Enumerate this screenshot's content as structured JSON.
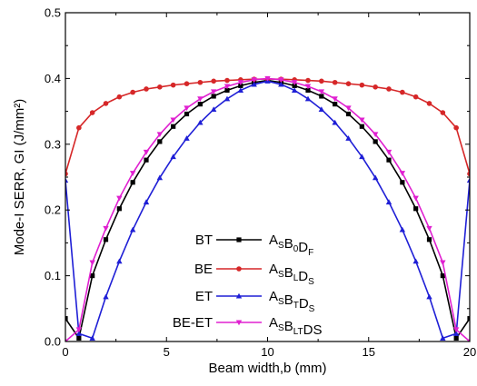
{
  "chart_data": {
    "type": "line",
    "xlabel": "Beam width,b (mm)",
    "ylabel": "Mode-I SERR, GI (J/mm²)",
    "xlim": [
      0,
      20
    ],
    "ylim": [
      0,
      0.5
    ],
    "xticks": [
      "0",
      "5",
      "10",
      "15",
      "20"
    ],
    "yticks": [
      "0.0",
      "0.1",
      "0.2",
      "0.3",
      "0.4",
      "0.5"
    ],
    "grid": false,
    "legend_position": "lower-center",
    "x": [
      0,
      0.667,
      1.333,
      2,
      2.667,
      3.333,
      4,
      4.667,
      5.333,
      6,
      6.667,
      7.333,
      8,
      8.667,
      9.333,
      10,
      10.667,
      11.333,
      12,
      12.667,
      13.333,
      14,
      14.667,
      15.333,
      16,
      16.667,
      17.333,
      18,
      18.667,
      19.333,
      20
    ],
    "series": [
      {
        "id": "BT",
        "label": "BT",
        "formula": [
          [
            "A",
            ""
          ],
          [
            "S",
            "sub"
          ],
          [
            "B",
            ""
          ],
          [
            "0",
            "sub"
          ],
          [
            "D",
            ""
          ],
          [
            "F",
            "sub"
          ]
        ],
        "color": "#000000",
        "marker": "square",
        "values": [
          0.035,
          0.005,
          0.1,
          0.155,
          0.202,
          0.242,
          0.276,
          0.304,
          0.327,
          0.346,
          0.361,
          0.373,
          0.382,
          0.389,
          0.394,
          0.397,
          0.394,
          0.389,
          0.382,
          0.373,
          0.361,
          0.346,
          0.327,
          0.304,
          0.276,
          0.242,
          0.202,
          0.155,
          0.1,
          0.005,
          0.035
        ]
      },
      {
        "id": "BE",
        "label": "BE",
        "formula": [
          [
            "A",
            ""
          ],
          [
            "S",
            "sub"
          ],
          [
            "B",
            ""
          ],
          [
            "L",
            "sub"
          ],
          [
            "D",
            ""
          ],
          [
            "S",
            "sub"
          ]
        ],
        "color": "#d62728",
        "marker": "circle",
        "values": [
          0.255,
          0.325,
          0.348,
          0.362,
          0.372,
          0.379,
          0.384,
          0.387,
          0.39,
          0.392,
          0.394,
          0.396,
          0.397,
          0.398,
          0.399,
          0.399,
          0.399,
          0.398,
          0.397,
          0.396,
          0.394,
          0.392,
          0.39,
          0.387,
          0.384,
          0.379,
          0.372,
          0.362,
          0.348,
          0.325,
          0.255
        ]
      },
      {
        "id": "ET",
        "label": "ET",
        "formula": [
          [
            "A",
            ""
          ],
          [
            "S",
            "sub"
          ],
          [
            "B",
            ""
          ],
          [
            "T",
            "sub"
          ],
          [
            "D",
            ""
          ],
          [
            "S",
            "sub"
          ]
        ],
        "color": "#1f1fd6",
        "marker": "triangle",
        "values": [
          0.245,
          0.012,
          0.005,
          0.068,
          0.122,
          0.17,
          0.212,
          0.249,
          0.281,
          0.309,
          0.333,
          0.353,
          0.369,
          0.382,
          0.391,
          0.396,
          0.391,
          0.382,
          0.369,
          0.353,
          0.333,
          0.309,
          0.281,
          0.249,
          0.212,
          0.17,
          0.122,
          0.068,
          0.005,
          0.012,
          0.245
        ]
      },
      {
        "id": "BE-ET",
        "label": "BE-ET",
        "formula": [
          [
            "A",
            ""
          ],
          [
            "S",
            "sub"
          ],
          [
            "B",
            ""
          ],
          [
            "LT",
            "sub"
          ],
          [
            "DS",
            ""
          ]
        ],
        "color": "#e020d0",
        "marker": "triangle-down",
        "values": [
          0.0,
          0.018,
          0.12,
          0.172,
          0.218,
          0.256,
          0.288,
          0.315,
          0.337,
          0.355,
          0.369,
          0.38,
          0.388,
          0.394,
          0.398,
          0.4,
          0.398,
          0.394,
          0.388,
          0.38,
          0.369,
          0.355,
          0.337,
          0.315,
          0.288,
          0.256,
          0.218,
          0.172,
          0.12,
          0.018,
          0.0
        ]
      }
    ]
  }
}
